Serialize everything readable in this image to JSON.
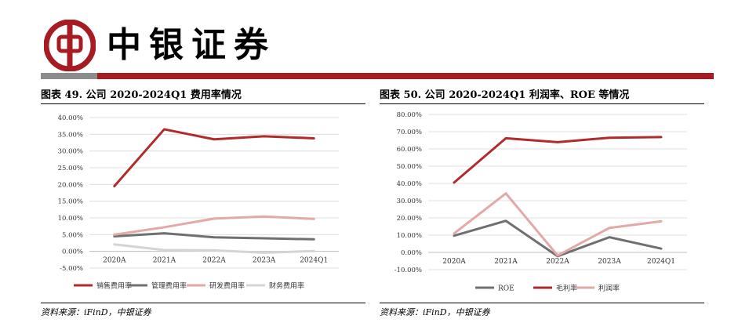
{
  "header": {
    "brand": "中银证券",
    "colors": {
      "brand_red": "#a61c22",
      "grey_band": "#8c8c8c"
    }
  },
  "left_panel": {
    "title": "图表 49. 公司 2020-2024Q1 费用率情况",
    "source": "资料来源：iFinD，中银证券"
  },
  "right_panel": {
    "title": "图表 50. 公司 2020-2024Q1 利润率、ROE 等情况",
    "source": "资料来源：iFinD，中银证券"
  },
  "chart_data": [
    {
      "type": "line",
      "categories": [
        "2020A",
        "2021A",
        "2022A",
        "2023A",
        "2024Q1"
      ],
      "ylim": [
        -5,
        40
      ],
      "ytick_step": 5,
      "ytick_labels": [
        "-5.00%",
        "0.00%",
        "5.00%",
        "10.00%",
        "15.00%",
        "20.00%",
        "25.00%",
        "30.00%",
        "35.00%",
        "40.00%"
      ],
      "grid": true,
      "legend_position": "bottom",
      "series": [
        {
          "name": "销售费用率",
          "color": "#b22a2a",
          "width": 3,
          "values": [
            19.5,
            36.5,
            33.5,
            34.4,
            33.8
          ]
        },
        {
          "name": "管理费用率",
          "color": "#707070",
          "width": 3,
          "values": [
            4.5,
            5.4,
            4.2,
            3.9,
            3.6
          ]
        },
        {
          "name": "研发费用率",
          "color": "#e2a9a6",
          "width": 3,
          "values": [
            5.0,
            7.2,
            9.8,
            10.4,
            9.7
          ]
        },
        {
          "name": "财务费用率",
          "color": "#d4d4d4",
          "width": 3,
          "values": [
            2.1,
            0.4,
            0.3,
            -0.4,
            0.1
          ]
        }
      ]
    },
    {
      "type": "line",
      "categories": [
        "2020A",
        "2021A",
        "2022A",
        "2023A",
        "2024Q1"
      ],
      "ylim": [
        -10,
        80
      ],
      "ytick_step": 10,
      "ytick_labels": [
        "-10.00%",
        "0.00%",
        "10.00%",
        "20.00%",
        "30.00%",
        "40.00%",
        "50.00%",
        "60.00%",
        "70.00%",
        "80.00%"
      ],
      "grid": true,
      "legend_position": "bottom",
      "series": [
        {
          "name": "ROE",
          "color": "#707070",
          "width": 3,
          "values": [
            9.7,
            18.3,
            -2.2,
            8.8,
            2.2
          ]
        },
        {
          "name": "毛利率",
          "color": "#b22a2a",
          "width": 3,
          "values": [
            40.5,
            66.2,
            63.9,
            66.5,
            66.9
          ]
        },
        {
          "name": "利润率",
          "color": "#e2a9a6",
          "width": 3,
          "values": [
            11.0,
            34.2,
            -1.8,
            14.2,
            18.0
          ]
        }
      ]
    }
  ]
}
